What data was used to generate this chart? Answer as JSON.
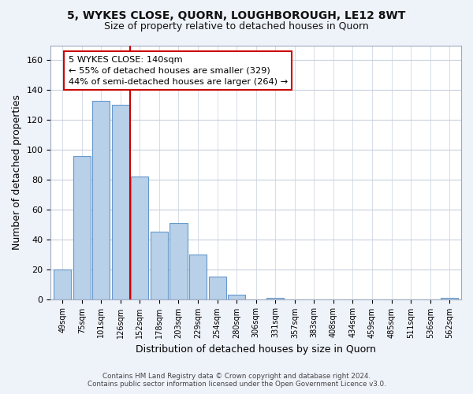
{
  "title": "5, WYKES CLOSE, QUORN, LOUGHBOROUGH, LE12 8WT",
  "subtitle": "Size of property relative to detached houses in Quorn",
  "xlabel": "Distribution of detached houses by size in Quorn",
  "ylabel": "Number of detached properties",
  "categories": [
    "49sqm",
    "75sqm",
    "101sqm",
    "126sqm",
    "152sqm",
    "178sqm",
    "203sqm",
    "229sqm",
    "254sqm",
    "280sqm",
    "306sqm",
    "331sqm",
    "357sqm",
    "383sqm",
    "408sqm",
    "434sqm",
    "459sqm",
    "485sqm",
    "511sqm",
    "536sqm",
    "562sqm"
  ],
  "values": [
    20,
    96,
    133,
    130,
    82,
    45,
    51,
    30,
    15,
    3,
    0,
    1,
    0,
    0,
    0,
    0,
    0,
    0,
    0,
    0,
    1
  ],
  "bar_color": "#b8d0e8",
  "bar_edge_color": "#6699cc",
  "vline_x": 3.5,
  "vline_color": "#cc0000",
  "annotation_lines": [
    "5 WYKES CLOSE: 140sqm",
    "← 55% of detached houses are smaller (329)",
    "44% of semi-detached houses are larger (264) →"
  ],
  "ylim": [
    0,
    170
  ],
  "yticks": [
    0,
    20,
    40,
    60,
    80,
    100,
    120,
    140,
    160
  ],
  "footer_line1": "Contains HM Land Registry data © Crown copyright and database right 2024.",
  "footer_line2": "Contains public sector information licensed under the Open Government Licence v3.0.",
  "bg_color": "#eef2f9",
  "plot_bg_color": "#ffffff",
  "grid_color": "#c8d0de"
}
